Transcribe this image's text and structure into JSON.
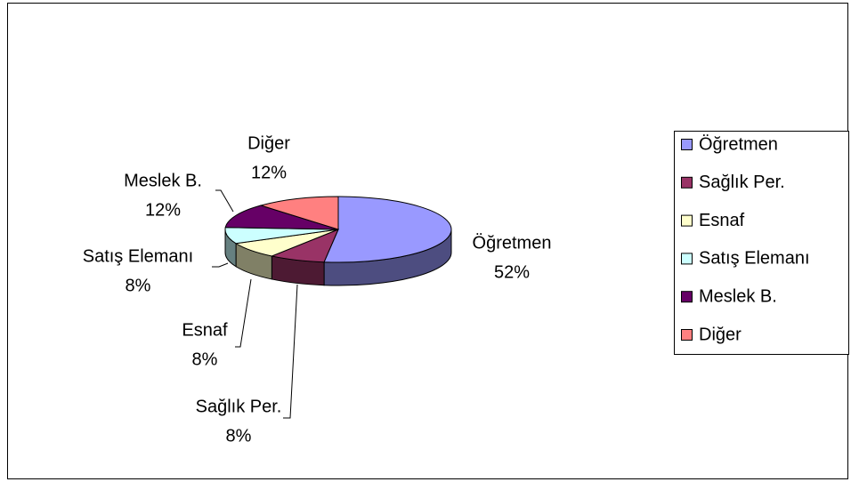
{
  "chart_data": {
    "type": "pie",
    "categories": [
      "Öğretmen",
      "Sağlık Per.",
      "Esnaf",
      "Satış Elemanı",
      "Meslek B.",
      "Diğer"
    ],
    "values": [
      52,
      8,
      8,
      8,
      12,
      12
    ],
    "value_labels": [
      "52%",
      "8%",
      "8%",
      "8%",
      "12%",
      "12%"
    ],
    "colors": [
      "#9999ff",
      "#993366",
      "#ffffcc",
      "#ccffff",
      "#660066",
      "#ff8080"
    ],
    "legend": "right"
  }
}
